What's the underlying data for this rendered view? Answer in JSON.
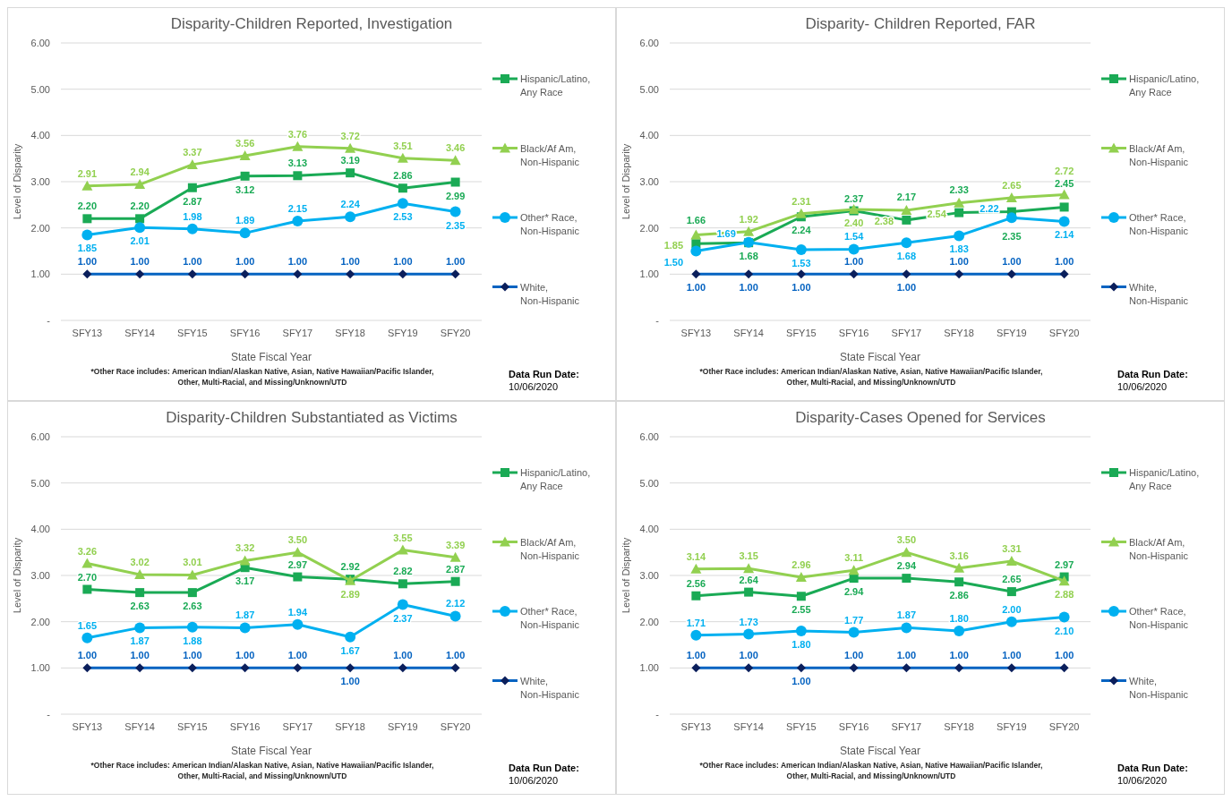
{
  "chart_data": [
    {
      "type": "line",
      "title": "Disparity-Children Reported, Investigation",
      "xlabel": "State Fiscal Year",
      "ylabel": "Level of Disparity",
      "categories": [
        "SFY13",
        "SFY14",
        "SFY15",
        "SFY16",
        "SFY17",
        "SFY18",
        "SFY19",
        "SFY20"
      ],
      "ylim": [
        0,
        6
      ],
      "yticks": [
        {
          "value": 0,
          "label": "-"
        },
        {
          "value": 1,
          "label": "1.00"
        },
        {
          "value": 2,
          "label": "2.00"
        },
        {
          "value": 3,
          "label": "3.00"
        },
        {
          "value": 4,
          "label": "4.00"
        },
        {
          "value": 5,
          "label": "5.00"
        },
        {
          "value": 6,
          "label": "6.00"
        }
      ],
      "grid": "y",
      "legend": "right",
      "series": [
        {
          "name": "Hispanic/Latino, Any Race",
          "color": "#1aaa55",
          "marker": "square",
          "values": [
            2.2,
            2.2,
            2.87,
            3.12,
            3.13,
            3.19,
            2.86,
            2.99
          ],
          "value_labels": [
            "2.20",
            "2.20",
            "2.87",
            "3.12",
            "3.13",
            "3.19",
            "2.86",
            "2.99"
          ]
        },
        {
          "name": "Black/Af Am, Non-Hispanic",
          "color": "#92d050",
          "marker": "triangle",
          "values": [
            2.91,
            2.94,
            3.37,
            3.56,
            3.76,
            3.72,
            3.51,
            3.46
          ],
          "value_labels": [
            "2.91",
            "2.94",
            "3.37",
            "3.56",
            "3.76",
            "3.72",
            "3.51",
            "3.46"
          ]
        },
        {
          "name": "Other* Race, Non-Hispanic",
          "color": "#00b0f0",
          "marker": "circle",
          "values": [
            1.85,
            2.01,
            1.98,
            1.89,
            2.15,
            2.24,
            2.53,
            2.35
          ],
          "value_labels": [
            "1.85",
            "2.01",
            "1.98",
            "1.89",
            "2.15",
            "2.24",
            "2.53",
            "2.35"
          ]
        },
        {
          "name": "White, Non-Hispanic",
          "color": "#0563c1",
          "marker": "diamond",
          "values": [
            1.0,
            1.0,
            1.0,
            1.0,
            1.0,
            1.0,
            1.0,
            1.0
          ],
          "value_labels": [
            "1.00",
            "1.00",
            "1.00",
            "1.00",
            "1.00",
            "1.00",
            "1.00",
            "1.00"
          ]
        }
      ],
      "annotations": [
        "*Other Race includes:  American Indian/Alaskan Native, Asian, Native Hawaiian/Pacific Islander, Other, Multi-Racial, and Missing/Unknown/UTD",
        "Data Run Date:",
        "10/06/2020"
      ]
    },
    {
      "type": "line",
      "title": "Disparity- Children Reported, FAR",
      "xlabel": "State Fiscal Year",
      "ylabel": "Level of Disparity",
      "categories": [
        "SFY13",
        "SFY14",
        "SFY15",
        "SFY16",
        "SFY17",
        "SFY18",
        "SFY19",
        "SFY20"
      ],
      "ylim": [
        0,
        6
      ],
      "yticks": [
        {
          "value": 0,
          "label": "-"
        },
        {
          "value": 1,
          "label": "1.00"
        },
        {
          "value": 2,
          "label": "2.00"
        },
        {
          "value": 3,
          "label": "3.00"
        },
        {
          "value": 4,
          "label": "4.00"
        },
        {
          "value": 5,
          "label": "5.00"
        },
        {
          "value": 6,
          "label": "6.00"
        }
      ],
      "grid": "y",
      "legend": "right",
      "series": [
        {
          "name": "Hispanic/Latino, Any Race",
          "color": "#1aaa55",
          "marker": "square",
          "values": [
            1.66,
            1.68,
            2.24,
            2.37,
            2.17,
            2.33,
            2.35,
            2.45
          ],
          "value_labels": [
            "1.66",
            "1.68",
            "2.24",
            "2.37",
            "2.17",
            "2.33",
            "2.35",
            "2.45"
          ]
        },
        {
          "name": "Black/Af Am, Non-Hispanic",
          "color": "#92d050",
          "marker": "triangle",
          "values": [
            1.85,
            1.92,
            2.31,
            2.4,
            2.38,
            2.54,
            2.65,
            2.72
          ],
          "value_labels": [
            "1.85",
            "1.92",
            "2.31",
            "2.40",
            "2.38",
            "2.54",
            "2.65",
            "2.72"
          ]
        },
        {
          "name": "Other* Race, Non-Hispanic",
          "color": "#00b0f0",
          "marker": "circle",
          "values": [
            1.5,
            1.69,
            1.53,
            1.54,
            1.68,
            1.83,
            2.22,
            2.14
          ],
          "value_labels": [
            "1.50",
            "1.69",
            "1.53",
            "1.54",
            "1.68",
            "1.83",
            "2.22",
            "2.14"
          ]
        },
        {
          "name": "White, Non-Hispanic",
          "color": "#0563c1",
          "marker": "diamond",
          "values": [
            1.0,
            1.0,
            1.0,
            1.0,
            1.0,
            1.0,
            1.0,
            1.0
          ],
          "value_labels": [
            "1.00",
            "1.00",
            "1.00",
            "1.00",
            "1.00",
            "1.00",
            "1.00",
            "1.00"
          ]
        }
      ],
      "annotations": [
        "*Other Race includes:  American Indian/Alaskan Native, Asian, Native Hawaiian/Pacific Islander, Other, Multi-Racial, and Missing/Unknown/UTD",
        "Data Run Date:",
        "10/06/2020"
      ]
    },
    {
      "type": "line",
      "title": "Disparity-Children Substantiated as Victims",
      "xlabel": "State Fiscal Year",
      "ylabel": "Level of Disparity",
      "categories": [
        "SFY13",
        "SFY14",
        "SFY15",
        "SFY16",
        "SFY17",
        "SFY18",
        "SFY19",
        "SFY20"
      ],
      "ylim": [
        0,
        6
      ],
      "yticks": [
        {
          "value": 0,
          "label": "-"
        },
        {
          "value": 1,
          "label": "1.00"
        },
        {
          "value": 2,
          "label": "2.00"
        },
        {
          "value": 3,
          "label": "3.00"
        },
        {
          "value": 4,
          "label": "4.00"
        },
        {
          "value": 5,
          "label": "5.00"
        },
        {
          "value": 6,
          "label": "6.00"
        }
      ],
      "grid": "y",
      "legend": "right",
      "series": [
        {
          "name": "Hispanic/Latino, Any Race",
          "color": "#1aaa55",
          "marker": "square",
          "values": [
            2.7,
            2.63,
            2.63,
            3.17,
            2.97,
            2.92,
            2.82,
            2.87
          ],
          "value_labels": [
            "2.70",
            "2.63",
            "2.63",
            "3.17",
            "2.97",
            "2.92",
            "2.82",
            "2.87"
          ]
        },
        {
          "name": "Black/Af Am, Non-Hispanic",
          "color": "#92d050",
          "marker": "triangle",
          "values": [
            3.26,
            3.02,
            3.01,
            3.32,
            3.5,
            2.89,
            3.55,
            3.39
          ],
          "value_labels": [
            "3.26",
            "3.02",
            "3.01",
            "3.32",
            "3.50",
            "2.89",
            "3.55",
            "3.39"
          ]
        },
        {
          "name": "Other* Race, Non-Hispanic",
          "color": "#00b0f0",
          "marker": "circle",
          "values": [
            1.65,
            1.87,
            1.88,
            1.87,
            1.94,
            1.67,
            2.37,
            2.12
          ],
          "value_labels": [
            "1.65",
            "1.87",
            "1.88",
            "1.87",
            "1.94",
            "1.67",
            "2.37",
            "2.12"
          ]
        },
        {
          "name": "White, Non-Hispanic",
          "color": "#0563c1",
          "marker": "diamond",
          "values": [
            1.0,
            1.0,
            1.0,
            1.0,
            1.0,
            1.0,
            1.0,
            1.0
          ],
          "value_labels": [
            "1.00",
            "1.00",
            "1.00",
            "1.00",
            "1.00",
            "1.00",
            "1.00",
            "1.00"
          ]
        }
      ],
      "annotations": [
        "*Other Race includes:  American Indian/Alaskan Native, Asian, Native Hawaiian/Pacific Islander, Other, Multi-Racial, and Missing/Unknown/UTD",
        "Data Run Date:",
        "10/06/2020"
      ]
    },
    {
      "type": "line",
      "title": "Disparity-Cases Opened for Services",
      "xlabel": "State Fiscal Year",
      "ylabel": "Level of Disparity",
      "categories": [
        "SFY13",
        "SFY14",
        "SFY15",
        "SFY16",
        "SFY17",
        "SFY18",
        "SFY19",
        "SFY20"
      ],
      "ylim": [
        0,
        6
      ],
      "yticks": [
        {
          "value": 0,
          "label": "-"
        },
        {
          "value": 1,
          "label": "1.00"
        },
        {
          "value": 2,
          "label": "2.00"
        },
        {
          "value": 3,
          "label": "3.00"
        },
        {
          "value": 4,
          "label": "4.00"
        },
        {
          "value": 5,
          "label": "5.00"
        },
        {
          "value": 6,
          "label": "6.00"
        }
      ],
      "grid": "y",
      "legend": "right",
      "series": [
        {
          "name": "Hispanic/Latino, Any Race",
          "color": "#1aaa55",
          "marker": "square",
          "values": [
            2.56,
            2.64,
            2.55,
            2.94,
            2.94,
            2.86,
            2.65,
            2.97
          ],
          "value_labels": [
            "2.56",
            "2.64",
            "2.55",
            "2.94",
            "2.94",
            "2.86",
            "2.65",
            "2.97"
          ]
        },
        {
          "name": "Black/Af Am, Non-Hispanic",
          "color": "#92d050",
          "marker": "triangle",
          "values": [
            3.14,
            3.15,
            2.96,
            3.11,
            3.5,
            3.16,
            3.31,
            2.88
          ],
          "value_labels": [
            "3.14",
            "3.15",
            "2.96",
            "3.11",
            "3.50",
            "3.16",
            "3.31",
            "2.88"
          ]
        },
        {
          "name": "Other* Race, Non-Hispanic",
          "color": "#00b0f0",
          "marker": "circle",
          "values": [
            1.71,
            1.73,
            1.8,
            1.77,
            1.87,
            1.8,
            2.0,
            2.1
          ],
          "value_labels": [
            "1.71",
            "1.73",
            "1.80",
            "1.77",
            "1.87",
            "1.80",
            "2.00",
            "2.10"
          ]
        },
        {
          "name": "White, Non-Hispanic",
          "color": "#0563c1",
          "marker": "diamond",
          "values": [
            1.0,
            1.0,
            1.0,
            1.0,
            1.0,
            1.0,
            1.0,
            1.0
          ],
          "value_labels": [
            "1.00",
            "1.00",
            "1.00",
            "1.00",
            "1.00",
            "1.00",
            "1.00",
            "1.00"
          ]
        }
      ],
      "annotations": [
        "*Other Race includes:  American Indian/Alaskan Native, Asian, Native Hawaiian/Pacific Islander, Other, Multi-Racial, and Missing/Unknown/UTD",
        "Data Run Date:",
        "10/06/2020"
      ]
    }
  ]
}
